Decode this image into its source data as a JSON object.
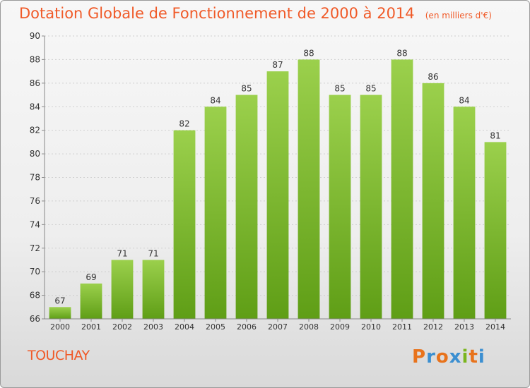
{
  "title": "Dotation Globale de Fonctionnement de 2000 à 2014",
  "subtitle": "(en milliers d'€)",
  "town": "TOUCHAY",
  "logo": {
    "letters": [
      "P",
      "r",
      "o",
      "x",
      "i",
      "t",
      "i"
    ],
    "colors": [
      "#e8731c",
      "#3b8fd1",
      "#e8731c",
      "#3b8fd1",
      "#7ab51d",
      "#e8731c",
      "#3b8fd1"
    ]
  },
  "colors": {
    "bar_top": "#9bd04c",
    "bar_bottom": "#5f9e16",
    "title": "#f05a28"
  },
  "chart_data": {
    "type": "bar",
    "categories": [
      "2000",
      "2001",
      "2002",
      "2003",
      "2004",
      "2005",
      "2006",
      "2007",
      "2008",
      "2009",
      "2010",
      "2011",
      "2012",
      "2013",
      "2014"
    ],
    "values": [
      67,
      69,
      71,
      71,
      82,
      84,
      85,
      87,
      88,
      85,
      85,
      88,
      86,
      84,
      81
    ],
    "ylim": [
      66,
      90
    ],
    "yticks": [
      66,
      68,
      70,
      72,
      74,
      76,
      78,
      80,
      82,
      84,
      86,
      88,
      90
    ],
    "grid": true
  }
}
